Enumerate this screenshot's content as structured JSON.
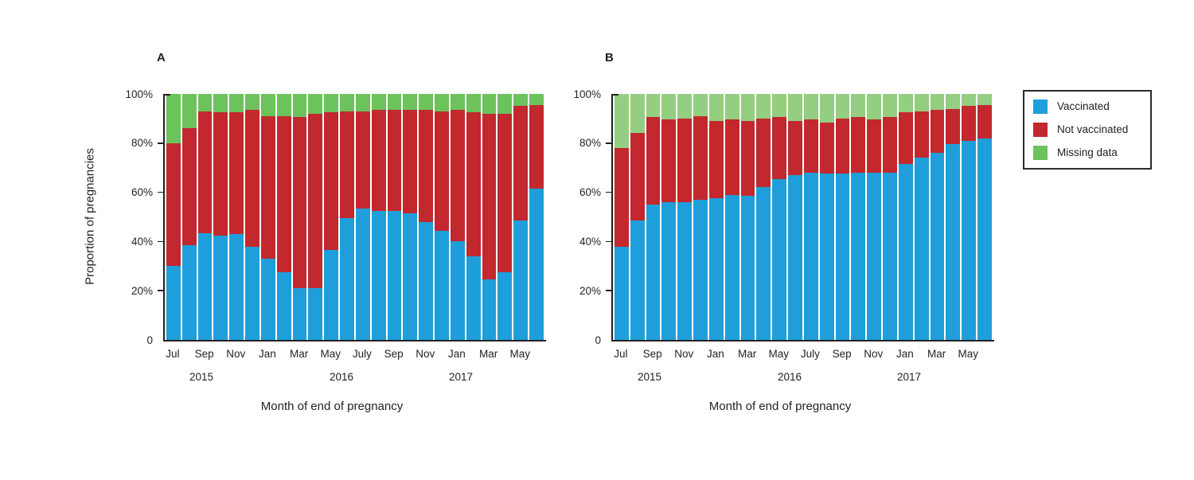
{
  "figure_title": "",
  "legend": {
    "items": [
      {
        "label": "Vaccinated",
        "color": "#1E9FDB"
      },
      {
        "label": "Not vaccinated",
        "color": "#C2282D"
      },
      {
        "label": "Missing data",
        "color": "#6CC25B"
      }
    ]
  },
  "chart_data": [
    {
      "type": "bar",
      "stacked": true,
      "panel_letter": "A",
      "ylabel": "Proportion of pregnancies",
      "xlabel": "Month of end of pregnancy",
      "ylim": [
        0,
        100
      ],
      "grid": false,
      "legend_position": "outside-right",
      "y_tick_labels": [
        "100%",
        "80%",
        "60%",
        "40%",
        "20%",
        "0"
      ],
      "y_tick_values": [
        100,
        80,
        60,
        40,
        20,
        0
      ],
      "categories": [
        "Jul 2015",
        "Aug 2015",
        "Sep 2015",
        "Oct 2015",
        "Nov 2015",
        "Dec 2015",
        "Jan 2016",
        "Feb 2016",
        "Mar 2016",
        "Apr 2016",
        "May 2016",
        "Jun 2016",
        "Jul 2016",
        "Aug 2016",
        "Sep 2016",
        "Oct 2016",
        "Nov 2016",
        "Dec 2016",
        "Jan 2017",
        "Feb 2017",
        "Mar 2017",
        "Apr 2017",
        "May 2017",
        "Jun 2017"
      ],
      "x_tick_labels": [
        {
          "month_index": 0,
          "label": "Jul"
        },
        {
          "month_index": 2,
          "label": "Sep"
        },
        {
          "month_index": 4,
          "label": "Nov"
        },
        {
          "month_index": 6,
          "label": "Jan"
        },
        {
          "month_index": 8,
          "label": "Mar"
        },
        {
          "month_index": 10,
          "label": "May"
        },
        {
          "month_index": 12,
          "label": "July"
        },
        {
          "month_index": 14,
          "label": "Sep"
        },
        {
          "month_index": 16,
          "label": "Nov"
        },
        {
          "month_index": 18,
          "label": "Jan"
        },
        {
          "month_index": 20,
          "label": "Mar"
        },
        {
          "month_index": 22,
          "label": "May"
        }
      ],
      "year_labels": [
        "2015",
        "2016",
        "2017"
      ],
      "series": [
        {
          "name": "Vaccinated",
          "color": "#1E9FDB",
          "values": [
            30,
            38.5,
            43.5,
            42.5,
            43,
            38,
            33,
            27.5,
            21,
            21,
            36.5,
            49.5,
            53.5,
            52.5,
            52.5,
            51.5,
            48,
            44.5,
            40,
            34,
            24.5,
            27.5,
            48.5,
            61.5
          ]
        },
        {
          "name": "Not vaccinated",
          "color": "#C2282D",
          "values": [
            50,
            47.5,
            49.5,
            50,
            49.5,
            55.5,
            58,
            63.5,
            69.5,
            71,
            56,
            43.5,
            39.5,
            41,
            41,
            42,
            45.5,
            48.5,
            53.5,
            58.5,
            67.5,
            64.5,
            46.5,
            34
          ]
        },
        {
          "name": "Missing data",
          "color": "#6CC25B",
          "values": [
            20,
            14,
            7,
            7.5,
            7.5,
            6.5,
            9,
            9,
            9.5,
            8,
            7.5,
            7,
            7,
            6.5,
            6.5,
            6.5,
            6.5,
            7,
            6.5,
            7.5,
            8,
            8,
            5,
            4.5
          ]
        }
      ]
    },
    {
      "type": "bar",
      "stacked": true,
      "panel_letter": "B",
      "ylabel": "",
      "xlabel": "Month of end of pregnancy",
      "ylim": [
        0,
        100
      ],
      "grid": false,
      "legend_position": "outside-right",
      "y_tick_labels": [
        "100%",
        "80%",
        "60%",
        "40%",
        "20%",
        "0"
      ],
      "y_tick_values": [
        100,
        80,
        60,
        40,
        20,
        0
      ],
      "categories": [
        "Jul 2015",
        "Aug 2015",
        "Sep 2015",
        "Oct 2015",
        "Nov 2015",
        "Dec 2015",
        "Jan 2016",
        "Feb 2016",
        "Mar 2016",
        "Apr 2016",
        "May 2016",
        "Jun 2016",
        "Jul 2016",
        "Aug 2016",
        "Sep 2016",
        "Oct 2016",
        "Nov 2016",
        "Dec 2016",
        "Jan 2017",
        "Feb 2017",
        "Mar 2017",
        "Apr 2017",
        "May 2017",
        "Jun 2017"
      ],
      "x_tick_labels": [
        {
          "month_index": 0,
          "label": "Jul"
        },
        {
          "month_index": 2,
          "label": "Sep"
        },
        {
          "month_index": 4,
          "label": "Nov"
        },
        {
          "month_index": 6,
          "label": "Jan"
        },
        {
          "month_index": 8,
          "label": "Mar"
        },
        {
          "month_index": 10,
          "label": "May"
        },
        {
          "month_index": 12,
          "label": "July"
        },
        {
          "month_index": 14,
          "label": "Sep"
        },
        {
          "month_index": 16,
          "label": "Nov"
        },
        {
          "month_index": 18,
          "label": "Jan"
        },
        {
          "month_index": 20,
          "label": "Mar"
        },
        {
          "month_index": 22,
          "label": "May"
        }
      ],
      "year_labels": [
        "2015",
        "2016",
        "2017"
      ],
      "series": [
        {
          "name": "Vaccinated",
          "color": "#1E9FDB",
          "values": [
            38,
            48.5,
            55,
            56,
            56,
            57,
            57.5,
            59,
            58.5,
            62,
            65.5,
            67,
            68,
            67.5,
            67.5,
            68,
            68,
            68,
            71.5,
            74,
            76,
            79.5,
            81,
            82
          ]
        },
        {
          "name": "Not vaccinated",
          "color": "#C2282D",
          "values": [
            40,
            35.5,
            35.5,
            33.5,
            34,
            34,
            31.5,
            30.5,
            30.5,
            28,
            25,
            22,
            21.5,
            21,
            22.5,
            22.5,
            21.5,
            22.5,
            21,
            19,
            17.5,
            14.5,
            14,
            13.5
          ]
        },
        {
          "name": "Missing data",
          "color": "#94CE80",
          "values": [
            22,
            16,
            9.5,
            10.5,
            10,
            9,
            11,
            10.5,
            11,
            10,
            9.5,
            11,
            10.5,
            11.5,
            10,
            9.5,
            10.5,
            9.5,
            7.5,
            7,
            6.5,
            6,
            5,
            4.5
          ]
        }
      ]
    }
  ]
}
